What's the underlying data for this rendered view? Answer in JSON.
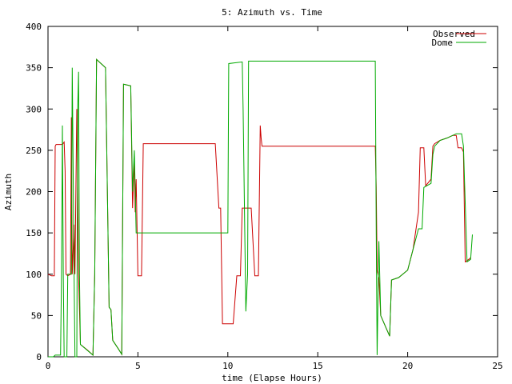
{
  "chart_data": {
    "type": "line",
    "title": "5: Azimuth vs. Time",
    "xlabel": "time (Elapse Hours)",
    "ylabel": "Azimuth",
    "xlim": [
      0,
      25
    ],
    "ylim": [
      0,
      400
    ],
    "xticks": [
      0,
      5,
      10,
      15,
      20,
      25
    ],
    "yticks": [
      0,
      50,
      100,
      150,
      200,
      250,
      300,
      350,
      400
    ],
    "grid": false,
    "legend_position": "top-right",
    "series": [
      {
        "name": "Observed",
        "color": "#cc0000",
        "points": [
          [
            0.0,
            100
          ],
          [
            0.2,
            98
          ],
          [
            0.35,
            98
          ],
          [
            0.4,
            255
          ],
          [
            0.45,
            257
          ],
          [
            0.8,
            257
          ],
          [
            0.9,
            260
          ],
          [
            0.95,
            225
          ],
          [
            1.0,
            100
          ],
          [
            1.1,
            98
          ],
          [
            1.25,
            100
          ],
          [
            1.3,
            290
          ],
          [
            1.35,
            100
          ],
          [
            1.45,
            160
          ],
          [
            1.5,
            100
          ],
          [
            1.6,
            300
          ],
          [
            1.7,
            100
          ],
          [
            1.8,
            15
          ],
          [
            2.2,
            8
          ],
          [
            2.5,
            2
          ],
          [
            2.6,
            100
          ],
          [
            2.7,
            360
          ],
          [
            3.2,
            350
          ],
          [
            3.4,
            60
          ],
          [
            3.5,
            57
          ],
          [
            3.6,
            20
          ],
          [
            3.9,
            10
          ],
          [
            4.1,
            3
          ],
          [
            4.2,
            330
          ],
          [
            4.6,
            328
          ],
          [
            4.7,
            180
          ],
          [
            4.8,
            240
          ],
          [
            4.85,
            175
          ],
          [
            4.9,
            215
          ],
          [
            5.0,
            98
          ],
          [
            5.2,
            98
          ],
          [
            5.3,
            258
          ],
          [
            9.3,
            258
          ],
          [
            9.5,
            180
          ],
          [
            9.6,
            180
          ],
          [
            9.7,
            40
          ],
          [
            10.3,
            40
          ],
          [
            10.5,
            98
          ],
          [
            10.7,
            98
          ],
          [
            10.8,
            180
          ],
          [
            11.3,
            180
          ],
          [
            11.5,
            98
          ],
          [
            11.7,
            98
          ],
          [
            11.8,
            280
          ],
          [
            11.85,
            265
          ],
          [
            11.9,
            255
          ],
          [
            18.2,
            255
          ],
          [
            18.25,
            205
          ],
          [
            18.3,
            105
          ],
          [
            18.35,
            100
          ],
          [
            18.4,
            95
          ],
          [
            18.5,
            50
          ],
          [
            18.8,
            35
          ],
          [
            19.0,
            25
          ],
          [
            19.1,
            93
          ],
          [
            19.5,
            96
          ],
          [
            20.0,
            105
          ],
          [
            20.3,
            130
          ],
          [
            20.6,
            175
          ],
          [
            20.7,
            253
          ],
          [
            20.9,
            253
          ],
          [
            21.0,
            207
          ],
          [
            21.3,
            215
          ],
          [
            21.4,
            255
          ],
          [
            21.5,
            258
          ],
          [
            21.8,
            262
          ],
          [
            22.2,
            265
          ],
          [
            22.5,
            268
          ],
          [
            22.7,
            268
          ],
          [
            22.8,
            253
          ],
          [
            23.0,
            253
          ],
          [
            23.1,
            248
          ],
          [
            23.2,
            115
          ],
          [
            23.4,
            118
          ],
          [
            23.5,
            120
          ]
        ]
      },
      {
        "name": "Dome",
        "color": "#00aa00",
        "points": [
          [
            0.0,
            0
          ],
          [
            0.3,
            0
          ],
          [
            0.4,
            2
          ],
          [
            0.7,
            2
          ],
          [
            0.75,
            100
          ],
          [
            0.8,
            280
          ],
          [
            0.85,
            100
          ],
          [
            0.9,
            0
          ],
          [
            1.05,
            0
          ],
          [
            1.1,
            100
          ],
          [
            1.3,
            100
          ],
          [
            1.35,
            350
          ],
          [
            1.45,
            100
          ],
          [
            1.5,
            0
          ],
          [
            1.6,
            0
          ],
          [
            1.65,
            300
          ],
          [
            1.7,
            345
          ],
          [
            1.75,
            100
          ],
          [
            1.8,
            15
          ],
          [
            2.5,
            2
          ],
          [
            2.6,
            100
          ],
          [
            2.7,
            360
          ],
          [
            3.2,
            350
          ],
          [
            3.4,
            60
          ],
          [
            3.5,
            57
          ],
          [
            3.6,
            20
          ],
          [
            3.9,
            10
          ],
          [
            4.1,
            3
          ],
          [
            4.2,
            330
          ],
          [
            4.6,
            328
          ],
          [
            4.7,
            200
          ],
          [
            4.8,
            250
          ],
          [
            4.9,
            150
          ],
          [
            10.0,
            150
          ],
          [
            10.05,
            355
          ],
          [
            10.8,
            357
          ],
          [
            10.85,
            300
          ],
          [
            11.0,
            55
          ],
          [
            11.1,
            100
          ],
          [
            11.15,
            358
          ],
          [
            18.2,
            358
          ],
          [
            18.25,
            150
          ],
          [
            18.3,
            2
          ],
          [
            18.4,
            140
          ],
          [
            18.5,
            50
          ],
          [
            18.8,
            35
          ],
          [
            19.0,
            25
          ],
          [
            19.1,
            93
          ],
          [
            19.5,
            96
          ],
          [
            20.0,
            105
          ],
          [
            20.3,
            130
          ],
          [
            20.6,
            155
          ],
          [
            20.8,
            155
          ],
          [
            20.9,
            205
          ],
          [
            21.3,
            210
          ],
          [
            21.4,
            245
          ],
          [
            21.5,
            255
          ],
          [
            21.8,
            262
          ],
          [
            22.2,
            265
          ],
          [
            22.5,
            268
          ],
          [
            22.7,
            270
          ],
          [
            23.0,
            270
          ],
          [
            23.1,
            255
          ],
          [
            23.3,
            115
          ],
          [
            23.5,
            118
          ],
          [
            23.6,
            148
          ]
        ]
      }
    ]
  }
}
